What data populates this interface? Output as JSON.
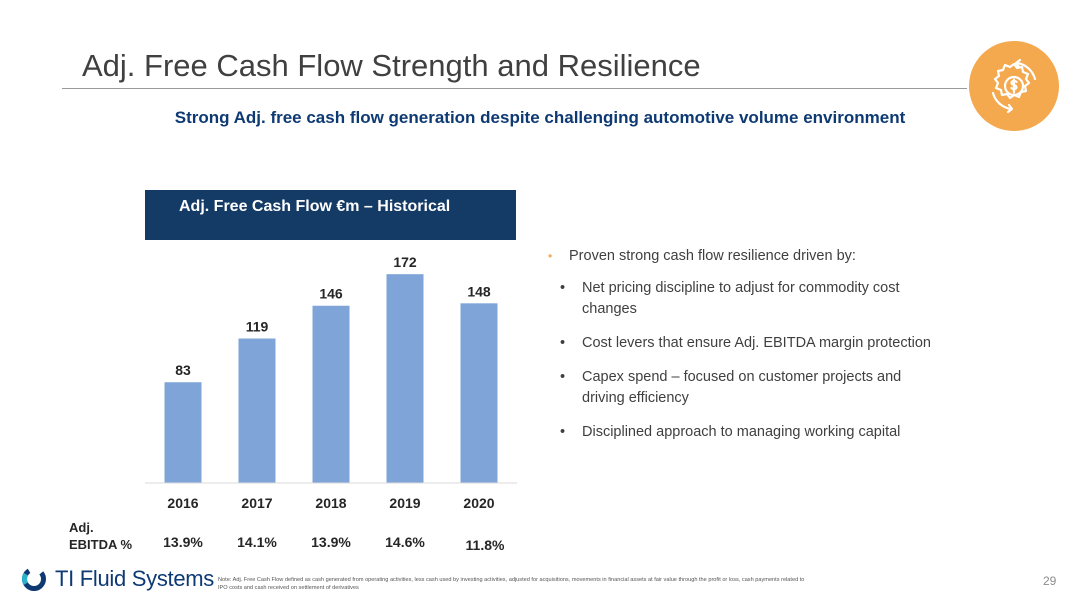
{
  "slide": {
    "title": "Adj. Free Cash Flow Strength and Resilience",
    "subtitle": "Strong Adj. free cash flow generation despite challenging automotive volume environment",
    "page_number": "29"
  },
  "chart_header": "Adj. Free Cash Flow €m – Historical",
  "chart_data": {
    "type": "bar",
    "title": "Adj. Free Cash Flow €m – Historical",
    "categories": [
      "2016",
      "2017",
      "2018",
      "2019",
      "2020"
    ],
    "values": [
      83,
      119,
      146,
      172,
      148
    ],
    "xlabel": "",
    "ylabel": "",
    "ylim": [
      0,
      180
    ],
    "grid": false,
    "bar_color": "#7ea4d8"
  },
  "ebitda": {
    "label_line1": "Adj.",
    "label_line2": "EBITDA %",
    "values": [
      "13.9%",
      "14.1%",
      "13.9%",
      "14.6%",
      "11.8%"
    ]
  },
  "bullets": {
    "main": "Proven strong cash flow resilience driven by:",
    "items": [
      [
        "Net pricing discipline to adjust for commodity cost",
        "changes"
      ],
      [
        "Cost levers that ensure Adj. EBITDA margin protection"
      ],
      [
        "Capex spend – focused on customer projects and",
        "driving efficiency"
      ],
      [
        "Disciplined approach to managing working capital"
      ]
    ]
  },
  "footer": {
    "logo_text": "TI Fluid Systems",
    "note_line1": "Note: Adj. Free Cash Flow defined as cash generated from operating activities, less cash used by investing activities, adjusted for acquisitions, movements in financial assets at fair value through the profit or loss, cash payments related to",
    "note_line2": "IPO costs and cash received on settlement of derivatives"
  },
  "colors": {
    "accent_orange": "#f4a94e",
    "navy": "#143a66",
    "subtitle_blue": "#0e3a73",
    "bar_blue": "#7ea4d8"
  },
  "icons": {
    "badge": "cash-cycle-gear-icon",
    "logo": "ti-logo-icon"
  }
}
